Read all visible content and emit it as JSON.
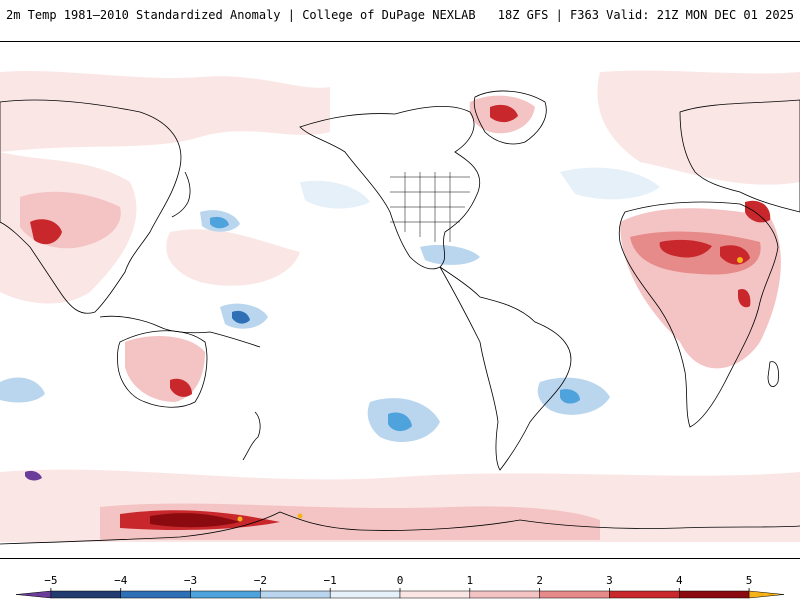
{
  "header": {
    "title_left": "2m Temp 1981–2010 Standardized Anomaly | College of DuPage NEXLAB",
    "title_right": "18Z GFS | F363 Valid: 21Z MON DEC 01 2025"
  },
  "colorbar": {
    "ticks": [
      {
        "label": "−5",
        "value": -5
      },
      {
        "label": "−4",
        "value": -4
      },
      {
        "label": "−3",
        "value": -3
      },
      {
        "label": "−2",
        "value": -2
      },
      {
        "label": "−1",
        "value": -1
      },
      {
        "label": "0",
        "value": 0
      },
      {
        "label": "1",
        "value": 1
      },
      {
        "label": "2",
        "value": 2
      },
      {
        "label": "3",
        "value": 3
      },
      {
        "label": "4",
        "value": 4
      },
      {
        "label": "5",
        "value": 5
      }
    ],
    "bins": [
      {
        "from": -5.5,
        "to": -5,
        "color": "#6a3d9a"
      },
      {
        "from": -5,
        "to": -4,
        "color": "#233c70"
      },
      {
        "from": -4,
        "to": -3,
        "color": "#2f6fb5"
      },
      {
        "from": -3,
        "to": -2,
        "color": "#4fa3dc"
      },
      {
        "from": -2,
        "to": -1,
        "color": "#b9d6ee"
      },
      {
        "from": -1,
        "to": 0,
        "color": "#e6f0f9"
      },
      {
        "from": 0,
        "to": 1,
        "color": "#fbe6e6"
      },
      {
        "from": 1,
        "to": 2,
        "color": "#f4c4c4"
      },
      {
        "from": 2,
        "to": 3,
        "color": "#e68a8a"
      },
      {
        "from": 3,
        "to": 4,
        "color": "#c8282c"
      },
      {
        "from": 4,
        "to": 5,
        "color": "#8b0a10"
      },
      {
        "from": 5,
        "to": 5.5,
        "color": "#f6b318"
      }
    ]
  },
  "colors": {
    "ocean_background": "#ffffff",
    "coastline": "#000000",
    "warm_light": "#fbe6e6",
    "warm_mid": "#f4c4c4",
    "warm_strong": "#e68a8a",
    "warm_red": "#c8282c",
    "warm_dark": "#8b0a10",
    "warm_extreme": "#f6b318",
    "cool_light": "#e6f0f9",
    "cool_mid": "#b9d6ee",
    "cool_strong": "#4fa3dc",
    "cool_dark": "#233c70",
    "cool_extreme": "#6a3d9a"
  }
}
